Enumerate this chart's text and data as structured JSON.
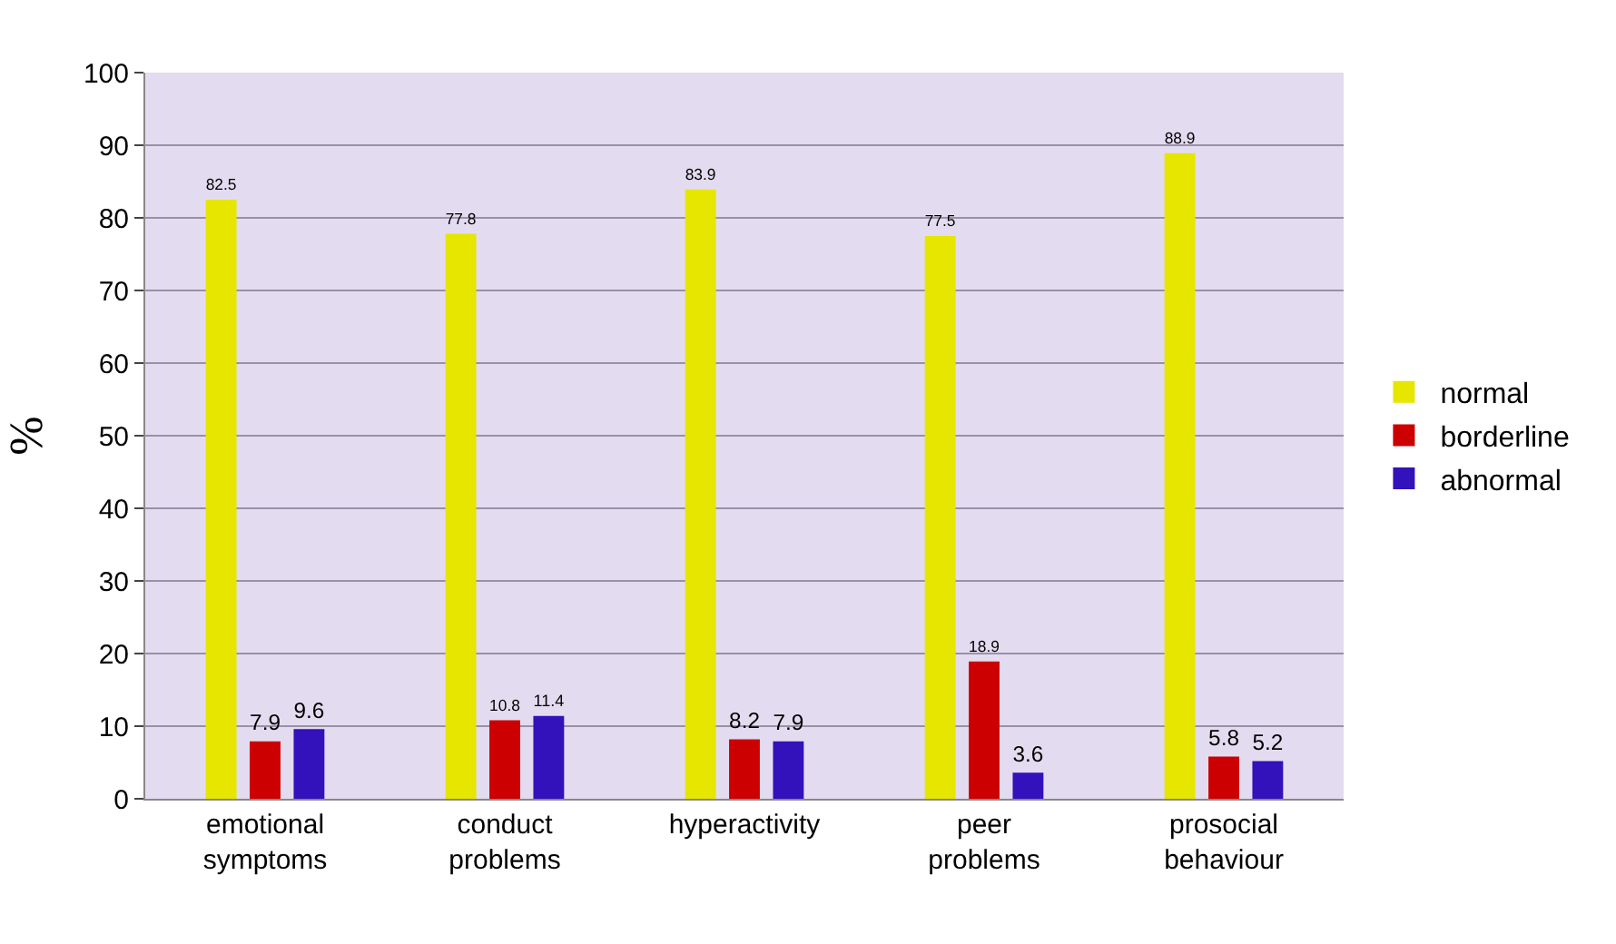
{
  "chart_data": {
    "type": "bar",
    "ylabel": "%",
    "categories": [
      "emotional\nsymptoms",
      "conduct\nproblems",
      "hyperactivity",
      "peer\nproblems",
      "prosocial\nbehaviour"
    ],
    "series": [
      {
        "name": "normal",
        "color": "#e6e600",
        "values": [
          82.5,
          77.8,
          83.9,
          77.5,
          88.9
        ]
      },
      {
        "name": "borderline",
        "color": "#cc0000",
        "values": [
          7.9,
          10.8,
          8.2,
          18.9,
          5.8
        ]
      },
      {
        "name": "abnormal",
        "color": "#3311bb",
        "values": [
          9.6,
          11.4,
          7.9,
          3.6,
          5.2
        ]
      }
    ],
    "ylim": [
      0,
      100
    ],
    "yticks": [
      0,
      10,
      20,
      30,
      40,
      50,
      60,
      70,
      80,
      90,
      100
    ],
    "grid": "y",
    "legend": "right",
    "data_labels": true
  }
}
